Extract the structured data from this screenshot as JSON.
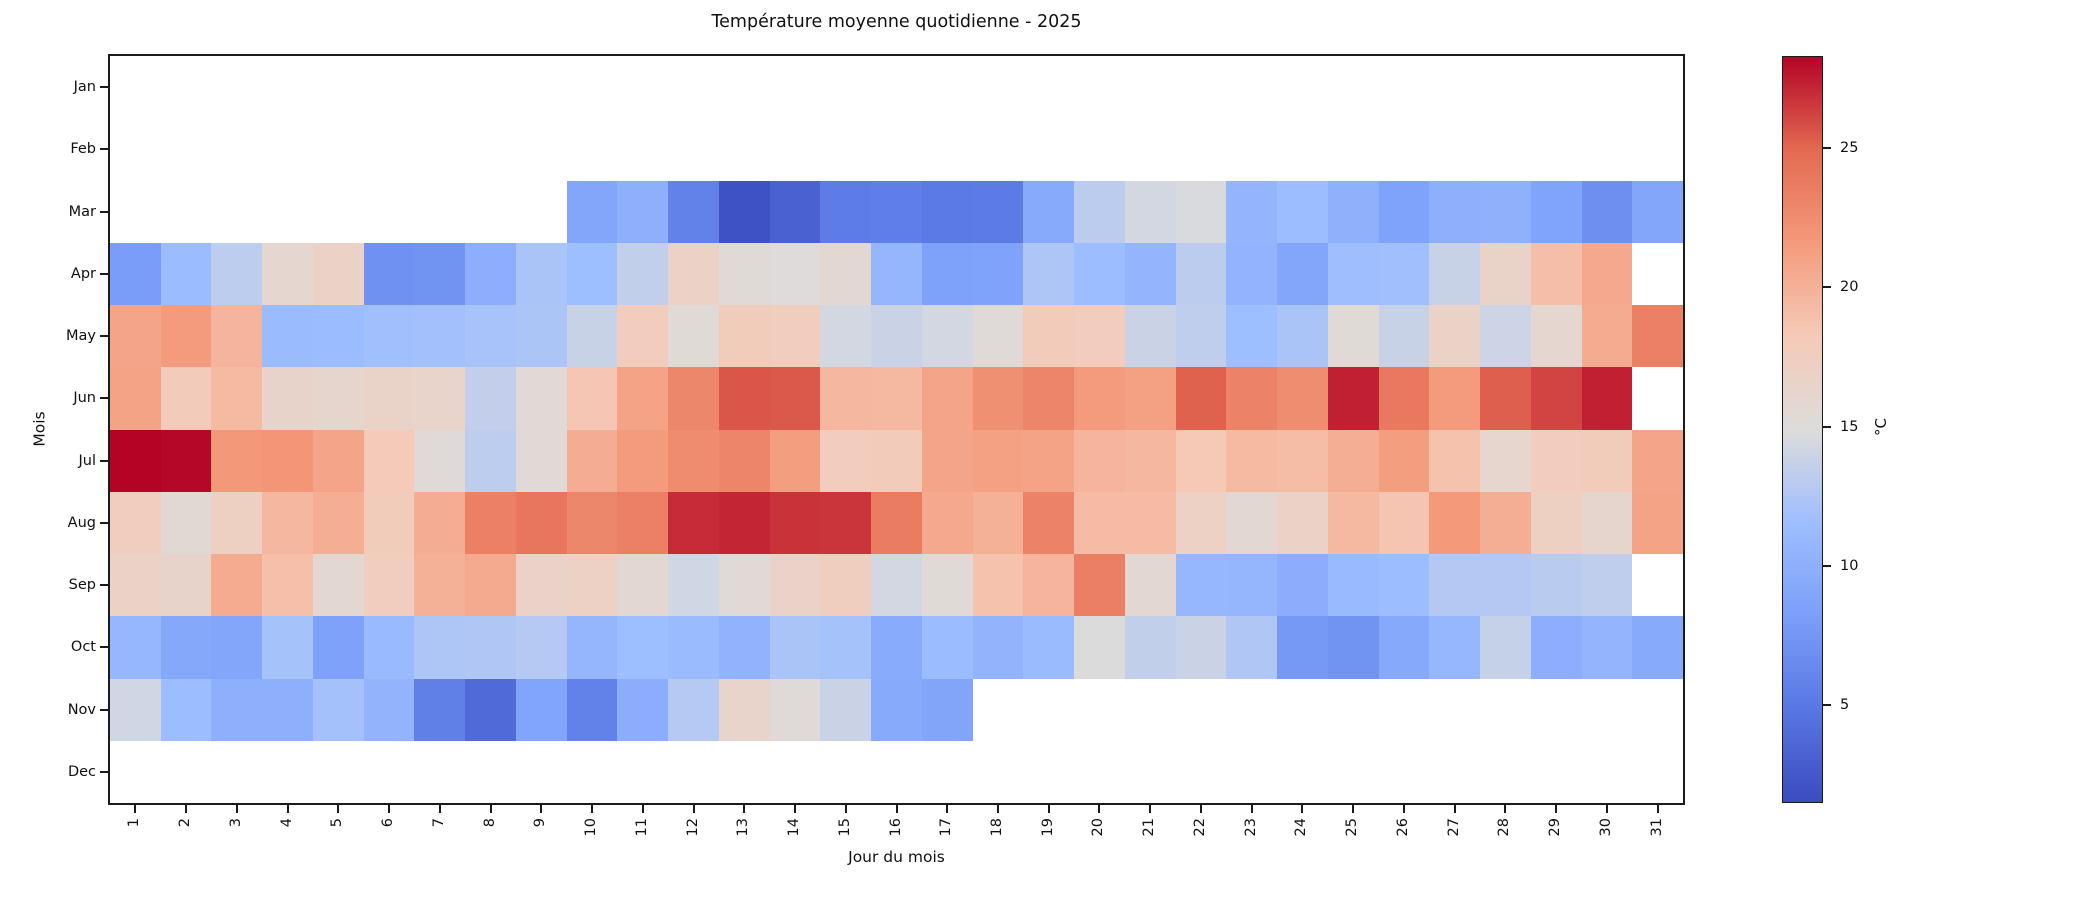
{
  "chart_data": {
    "type": "heatmap",
    "title": "Température moyenne quotidienne - 2025",
    "xlabel": "Jour du mois",
    "ylabel": "Mois",
    "colormap": "coolwarm",
    "vmin": 1.5,
    "vmax": 28.3,
    "unit": "°C",
    "colorbar_label": "°C",
    "colorbar_ticks": [
      5,
      10,
      15,
      20,
      25
    ],
    "grid": false,
    "x_ticklabels": [
      "1",
      "2",
      "3",
      "4",
      "5",
      "6",
      "7",
      "8",
      "9",
      "10",
      "11",
      "12",
      "13",
      "14",
      "15",
      "16",
      "17",
      "18",
      "19",
      "20",
      "21",
      "22",
      "23",
      "24",
      "25",
      "26",
      "27",
      "28",
      "29",
      "30",
      "31"
    ],
    "y_ticklabels": [
      "Jan",
      "Feb",
      "Mar",
      "Apr",
      "May",
      "Jun",
      "Jul",
      "Aug",
      "Sep",
      "Oct",
      "Nov",
      "Dec"
    ],
    "series": [
      {
        "month": "Jan",
        "values": [
          null,
          null,
          null,
          null,
          null,
          null,
          null,
          null,
          null,
          null,
          null,
          null,
          null,
          null,
          null,
          null,
          null,
          null,
          null,
          null,
          null,
          null,
          null,
          null,
          null,
          null,
          null,
          null,
          null,
          null,
          null
        ]
      },
      {
        "month": "Feb",
        "values": [
          null,
          null,
          null,
          null,
          null,
          null,
          null,
          null,
          null,
          null,
          null,
          null,
          null,
          null,
          null,
          null,
          null,
          null,
          null,
          null,
          null,
          null,
          null,
          null,
          null,
          null,
          null,
          null,
          null,
          null,
          null
        ]
      },
      {
        "month": "Mar",
        "values": [
          null,
          null,
          null,
          null,
          null,
          null,
          null,
          null,
          null,
          9,
          9.9,
          5.8,
          2,
          3.1,
          5.3,
          5.4,
          5.1,
          5.2,
          9.4,
          13.1,
          14.3,
          14.7,
          10.6,
          11.4,
          10.1,
          8.6,
          10,
          10.1,
          8.7,
          6.9,
          9
        ]
      },
      {
        "month": "Apr",
        "values": [
          8,
          11.3,
          13.2,
          16,
          16.8,
          7,
          7.2,
          9.8,
          12.2,
          11.5,
          13.4,
          16.9,
          15.3,
          15,
          15.8,
          10.7,
          8.5,
          8.6,
          12.4,
          11.4,
          10.6,
          13.1,
          10.4,
          9,
          11.6,
          11.7,
          13.8,
          16.6,
          19.1,
          20.6,
          null
        ]
      },
      {
        "month": "May",
        "values": [
          20.8,
          21.5,
          19.7,
          11.2,
          11.3,
          11.7,
          11.8,
          12.1,
          12.3,
          13.8,
          17.8,
          15.3,
          17.9,
          17.7,
          14.3,
          13.9,
          14.3,
          15.2,
          18,
          17.8,
          13.9,
          13.3,
          11.5,
          12.2,
          15.3,
          13.8,
          16.8,
          14,
          16,
          20.4,
          23.4
        ]
      },
      {
        "month": "Jun",
        "values": [
          21,
          18,
          19.4,
          16.5,
          16.2,
          16.6,
          16.4,
          13.5,
          15.5,
          18.5,
          21,
          22.9,
          25.6,
          25.5,
          19.6,
          19.5,
          20.9,
          22.3,
          23,
          21.5,
          21.2,
          25.2,
          23.2,
          22.5,
          27.4,
          23.9,
          21.5,
          25.3,
          26.2,
          27.4,
          null
        ]
      },
      {
        "month": "Jul",
        "values": [
          28.3,
          28.2,
          21.7,
          21.9,
          20.9,
          18.2,
          15.2,
          13.2,
          15.5,
          20.3,
          21.5,
          22.6,
          23,
          21.3,
          17.8,
          18,
          20.9,
          21.2,
          21,
          19.8,
          19.6,
          18.3,
          19.4,
          19.2,
          20.2,
          21.3,
          18.8,
          16.1,
          17.8,
          17.9,
          20.9
        ]
      },
      {
        "month": "Aug",
        "values": [
          17.7,
          15.6,
          17.2,
          19.6,
          20.2,
          17.9,
          20.3,
          23.4,
          24.1,
          22.9,
          23.4,
          27,
          27.2,
          26.8,
          26.7,
          23.7,
          20.6,
          20,
          23.2,
          19.3,
          19.3,
          17,
          15.8,
          16.9,
          19.5,
          18.6,
          21.6,
          20.2,
          17.2,
          16.2,
          21
        ]
      },
      {
        "month": "Sep",
        "values": [
          16.9,
          16.5,
          20.4,
          19,
          15.8,
          17.6,
          20,
          20.5,
          16.7,
          17,
          15.8,
          14.2,
          15.5,
          16.7,
          17.5,
          14.3,
          15.3,
          18.8,
          19.8,
          23.5,
          15.8,
          10.8,
          10.7,
          9.7,
          11.1,
          11.4,
          12.7,
          12.7,
          13,
          13.3,
          null
        ]
      },
      {
        "month": "Oct",
        "values": [
          10.8,
          9.2,
          9,
          12,
          8.5,
          11.1,
          12.4,
          12.5,
          12.8,
          10.7,
          11.5,
          11.2,
          10.3,
          12.2,
          12,
          9.5,
          11.3,
          10.5,
          11.2,
          14.8,
          13.4,
          13.9,
          12.5,
          7.7,
          7.2,
          9.3,
          10.8,
          13.6,
          9.8,
          10.6,
          9.4
        ]
      },
      {
        "month": "Nov",
        "values": [
          14.2,
          11.4,
          10,
          9.9,
          11.9,
          10.5,
          5.5,
          3.8,
          8.8,
          5.8,
          9.7,
          12.8,
          16.4,
          15.2,
          13.9,
          9.4,
          8.9,
          null,
          null,
          null,
          null,
          null,
          null,
          null,
          null,
          null,
          null,
          null,
          null,
          null,
          null
        ]
      },
      {
        "month": "Dec",
        "values": [
          null,
          null,
          null,
          null,
          null,
          null,
          null,
          null,
          null,
          null,
          null,
          null,
          null,
          null,
          null,
          null,
          null,
          null,
          null,
          null,
          null,
          null,
          null,
          null,
          null,
          null,
          null,
          null,
          null,
          null,
          null
        ]
      }
    ]
  }
}
